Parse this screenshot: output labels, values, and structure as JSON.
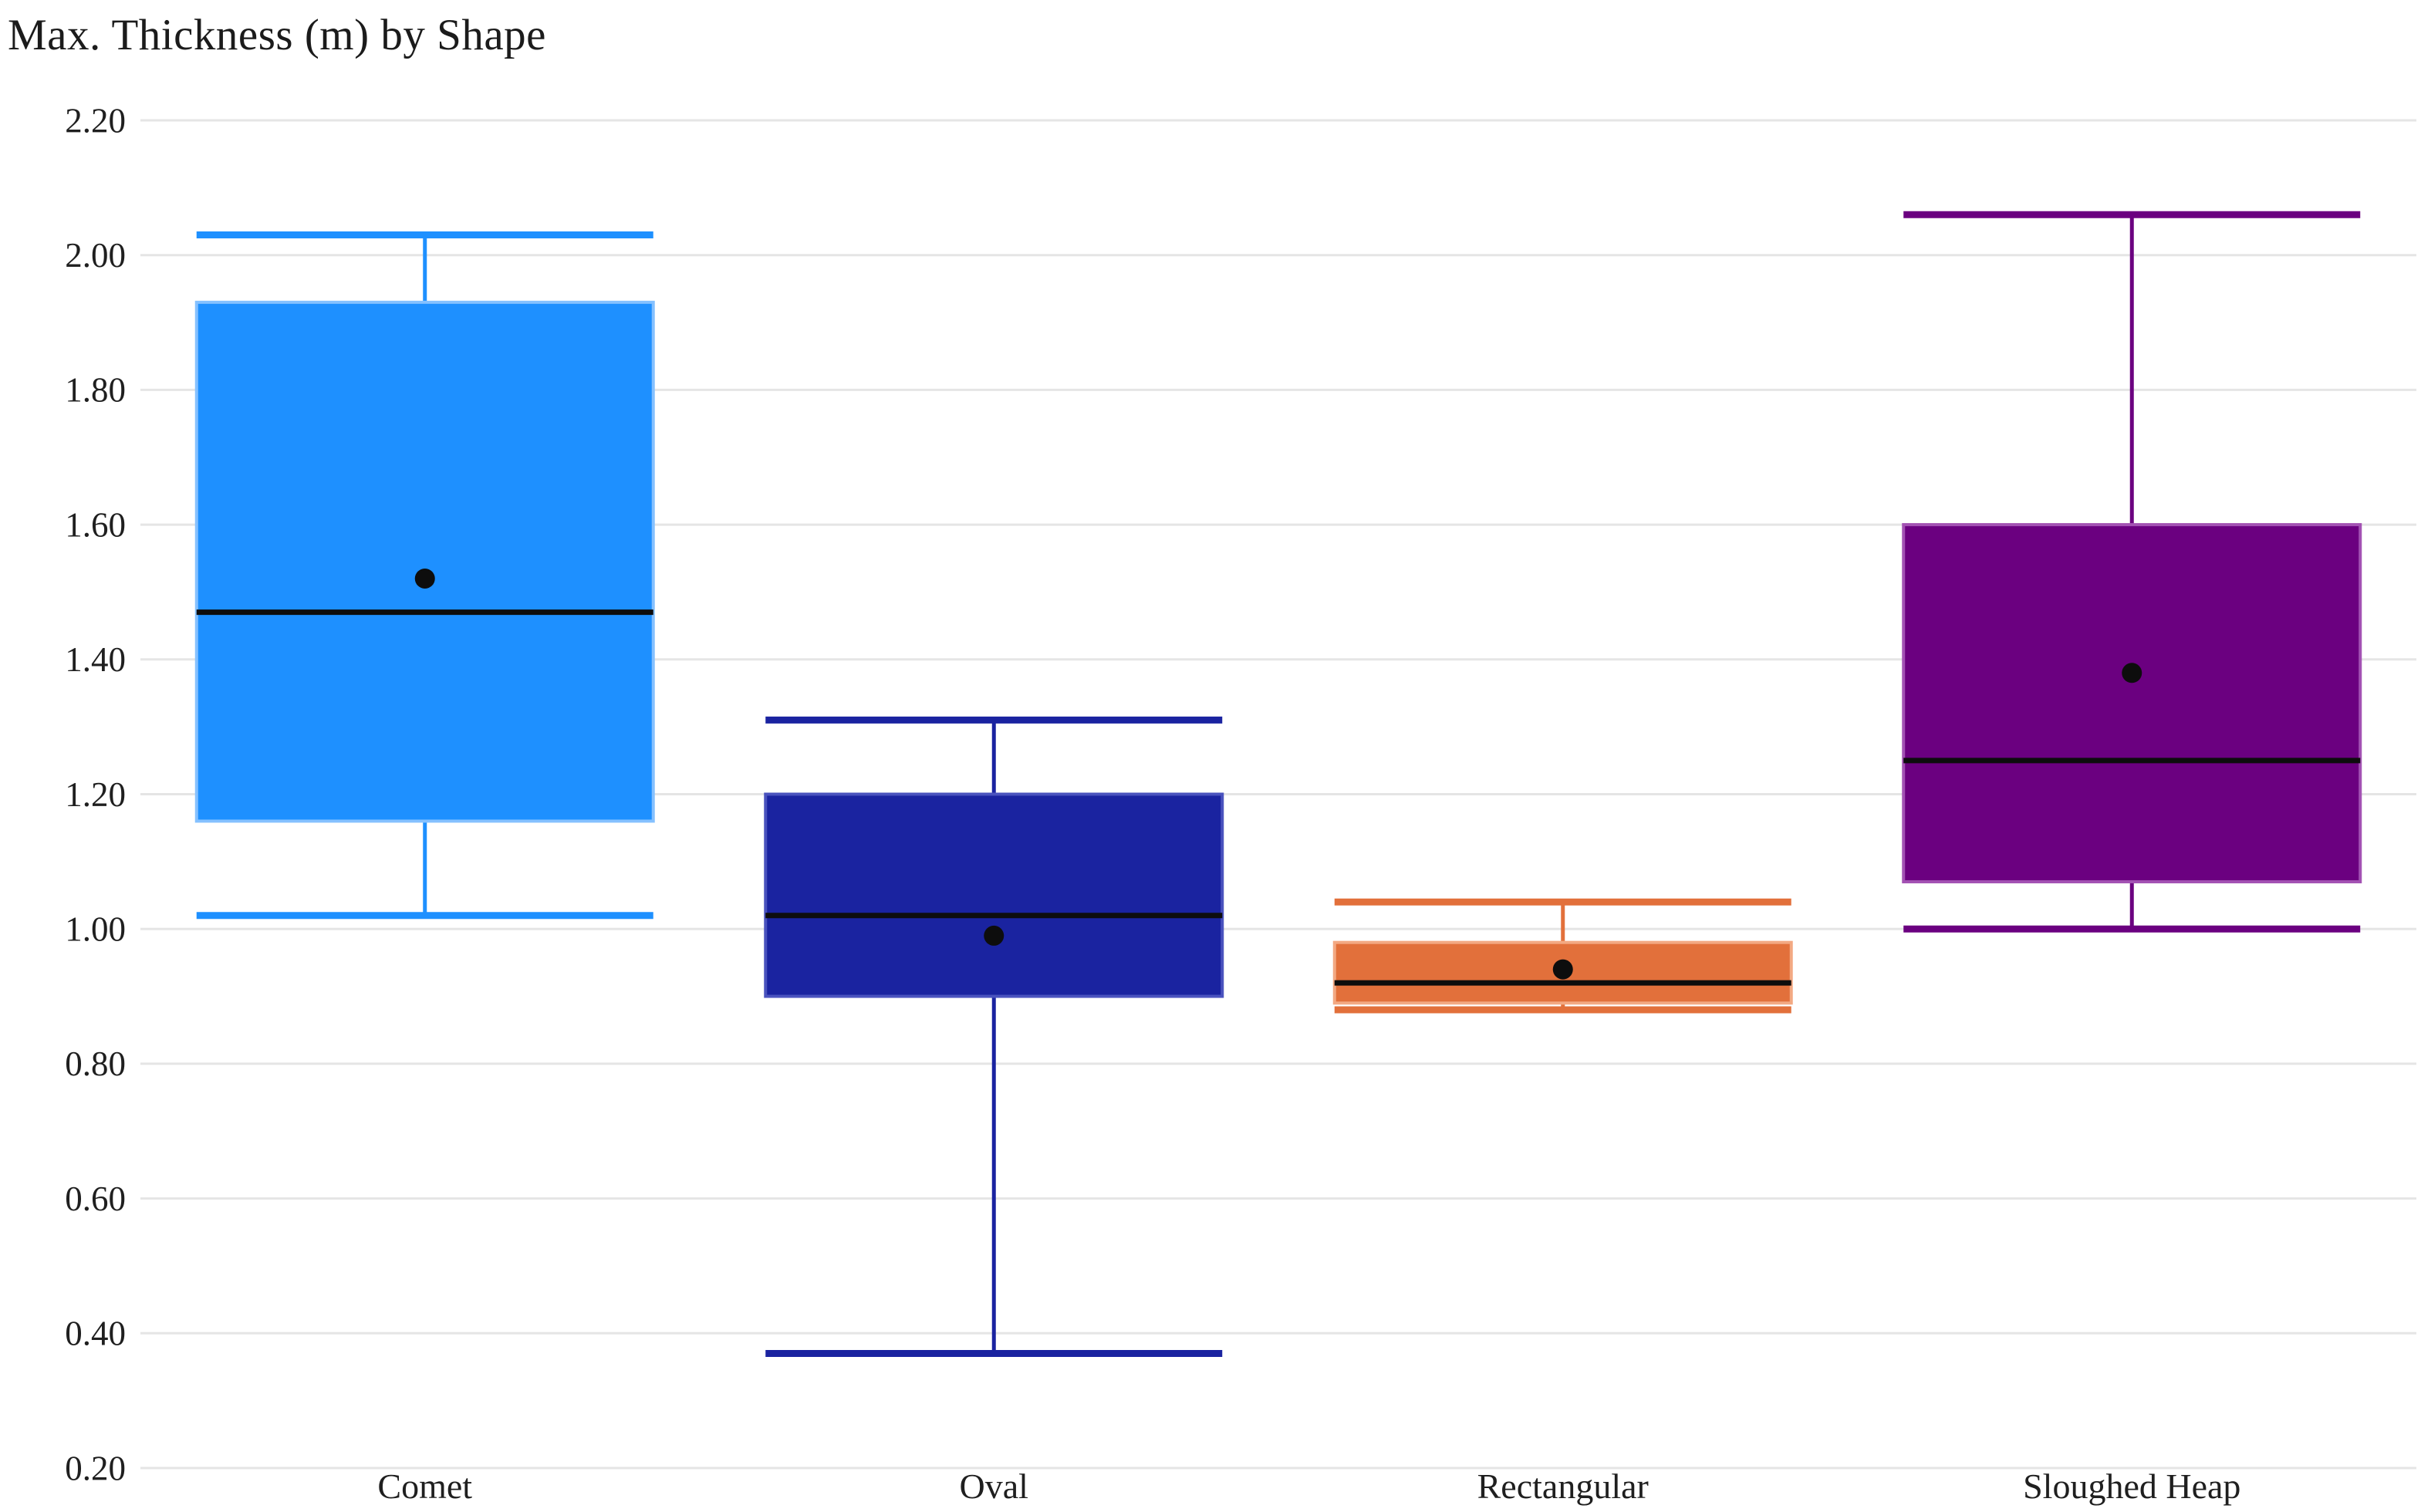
{
  "page": {
    "background": "#ffffff"
  },
  "chart_data": {
    "type": "box",
    "title": "Max. Thickness (m) by Shape",
    "xlabel": "",
    "ylabel": "",
    "ylim": [
      0.2,
      2.2
    ],
    "y_ticks": [
      2.2,
      2.0,
      1.8,
      1.6,
      1.4,
      1.2,
      1.0,
      0.8,
      0.6,
      0.4,
      0.2
    ],
    "y_tick_labels": [
      "2.20",
      "2.00",
      "1.80",
      "1.60",
      "1.40",
      "1.20",
      "1.00",
      "0.80",
      "0.60",
      "0.40",
      "0.20"
    ],
    "grid": true,
    "legend": "none",
    "categories": [
      "Comet",
      "Oval",
      "Rectangular",
      "Sloughed Heap"
    ],
    "series": [
      {
        "name": "Comet",
        "color": "#1E90FF",
        "edge_color": "#85C1FF",
        "min": 1.02,
        "q1": 1.16,
        "median": 1.47,
        "mean": 1.52,
        "q3": 1.93,
        "max": 2.03
      },
      {
        "name": "Oval",
        "color": "#1A23A0",
        "edge_color": "#4A53BE",
        "min": 0.37,
        "q1": 0.9,
        "median": 1.02,
        "mean": 0.99,
        "q3": 1.2,
        "max": 1.31
      },
      {
        "name": "Rectangular",
        "color": "#E2703B",
        "edge_color": "#F3A983",
        "min": 0.88,
        "q1": 0.89,
        "median": 0.92,
        "mean": 0.94,
        "q3": 0.98,
        "max": 1.04
      },
      {
        "name": "Sloughed Heap",
        "color": "#6B0080",
        "edge_color": "#A352B3",
        "min": 1.0,
        "q1": 1.07,
        "median": 1.25,
        "mean": 1.38,
        "q3": 1.6,
        "max": 2.06
      }
    ],
    "styles": {
      "grid_color": "#E5E5E5",
      "text_color": "#1F1F1F",
      "median_color": "#0D0D0D",
      "mean_dot_color": "#0D0D0D"
    }
  }
}
